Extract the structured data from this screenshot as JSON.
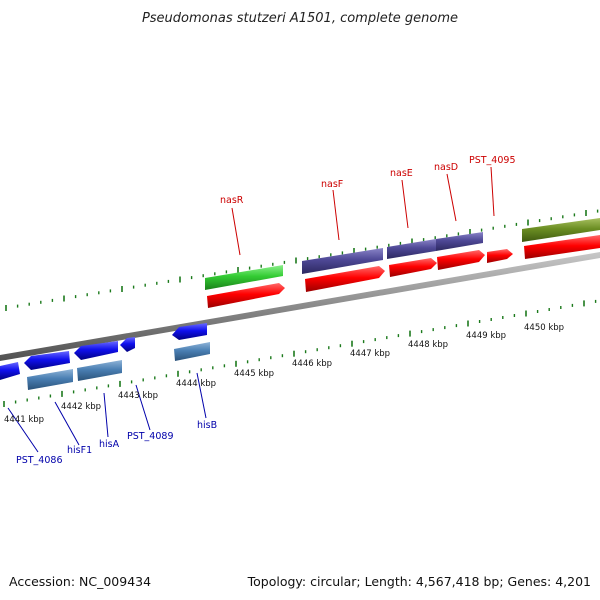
{
  "title": "Pseudomonas stutzeri A1501, complete genome",
  "footer": {
    "accession": "Accession: NC_009434",
    "summary": "Topology: circular; Length: 4,567,418 bp; Genes: 4,201"
  },
  "colors": {
    "background": "#ffffff",
    "backbone": "#8a8a8a",
    "tick": "#1c7a1c",
    "red_label": "#cc0000",
    "blue_label": "#0000aa"
  },
  "scale_labels": [
    "4441 kbp",
    "4442 kbp",
    "4443 kbp",
    "4444 kbp",
    "4445 kbp",
    "4446 kbp",
    "4447 kbp",
    "4448 kbp",
    "4449 kbp",
    "4450 kbp"
  ],
  "gene_labels_forward": [
    "nasR",
    "nasF",
    "nasE",
    "nasD",
    "PST_4095"
  ],
  "gene_labels_reverse": [
    "PST_4086",
    "hisF1",
    "hisA",
    "PST_4089",
    "hisB"
  ]
}
